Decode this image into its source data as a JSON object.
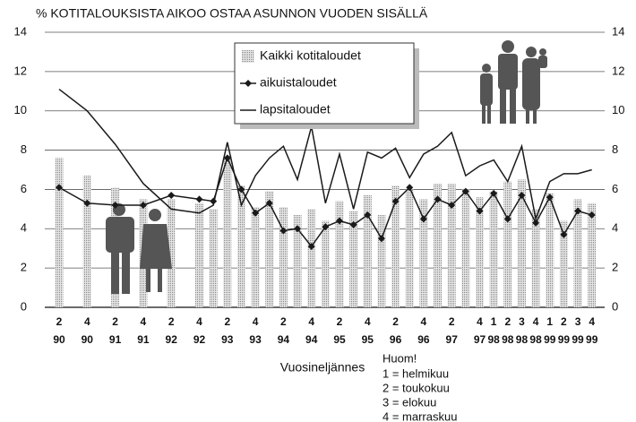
{
  "chart_data": {
    "type": "bar-line",
    "title": "% KOTITALOUKSISTA AIKOO OSTAA ASUNNON VUODEN SISÄLLÄ",
    "x_label": "Vuosineljännes",
    "note_title": "Huom!",
    "note_lines": [
      "1 = helmikuu",
      "2 = toukokuu",
      "3 = elokuu",
      "4 = marraskuu"
    ],
    "categories": [
      [
        "2",
        "90"
      ],
      [
        "4",
        "90"
      ],
      [
        "2",
        "91"
      ],
      [
        "4",
        "91"
      ],
      [
        "2",
        "92"
      ],
      [
        "4",
        "92"
      ],
      null,
      [
        "2",
        "93"
      ],
      null,
      [
        "4",
        "93"
      ],
      null,
      [
        "2",
        "94"
      ],
      null,
      [
        "4",
        "94"
      ],
      null,
      [
        "2",
        "95"
      ],
      null,
      [
        "4",
        "95"
      ],
      null,
      [
        "2",
        "96"
      ],
      null,
      [
        "4",
        "96"
      ],
      null,
      [
        "2",
        "97"
      ],
      null,
      [
        "4",
        "97"
      ],
      [
        "1",
        "98"
      ],
      [
        "2",
        "98"
      ],
      [
        "3",
        "98"
      ],
      [
        "4",
        "98"
      ],
      [
        "1",
        "99"
      ],
      [
        "2",
        "99"
      ],
      [
        "3",
        "99"
      ],
      [
        "4",
        "99"
      ]
    ],
    "series": [
      {
        "name": "Kaikki kotitaloudet",
        "kind": "bar",
        "color": "#c4c4c4",
        "values": [
          7.6,
          6.7,
          6.1,
          5.5,
          5.5,
          5.3,
          5.0,
          7.7,
          6.2,
          5.1,
          5.9,
          5.1,
          4.7,
          5.0,
          4.4,
          5.4,
          4.9,
          5.7,
          4.7,
          6.2,
          6.0,
          5.5,
          6.3,
          6.3,
          6.0,
          5.6,
          5.9,
          6.4,
          6.5,
          5.0,
          5.8,
          4.4,
          5.5,
          5.3
        ]
      },
      {
        "name": "aikuistaloudet",
        "kind": "line-marker",
        "color": "#1a1a1a",
        "values": [
          6.1,
          5.3,
          5.2,
          5.2,
          5.7,
          5.5,
          5.4,
          7.6,
          6.0,
          4.8,
          5.3,
          3.9,
          4.0,
          3.1,
          4.1,
          4.4,
          4.2,
          4.7,
          3.5,
          5.4,
          6.1,
          4.5,
          5.5,
          5.2,
          5.9,
          4.9,
          5.8,
          4.5,
          5.7,
          4.3,
          5.6,
          3.7,
          4.9,
          4.7
        ]
      },
      {
        "name": "lapsitaloudet",
        "kind": "line",
        "color": "#1a1a1a",
        "values": [
          11.1,
          10.0,
          8.3,
          6.3,
          5.0,
          4.8,
          5.2,
          8.4,
          5.2,
          6.7,
          7.6,
          8.2,
          6.5,
          9.2,
          5.3,
          7.8,
          5.0,
          7.9,
          7.6,
          8.1,
          6.6,
          7.8,
          8.2,
          8.9,
          6.7,
          7.2,
          7.5,
          6.4,
          8.2,
          4.5,
          6.4,
          6.8,
          6.8,
          7.0
        ]
      }
    ],
    "ylim": [
      0,
      14
    ],
    "yticks": [
      0,
      2,
      4,
      6,
      8,
      10,
      12,
      14
    ],
    "y2lim": [
      0,
      14
    ],
    "y2ticks": [
      0,
      2,
      4,
      6,
      8,
      10,
      12,
      14
    ],
    "grid": true
  }
}
